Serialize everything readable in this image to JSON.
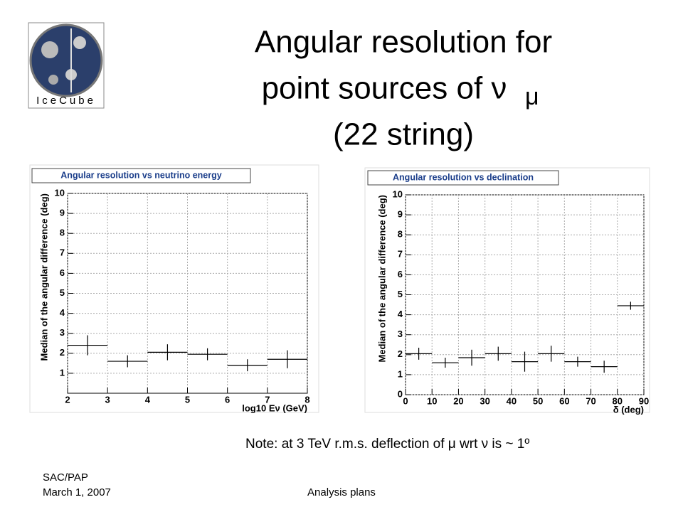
{
  "slide_title": [
    "Angular resolution for",
    "point sources of ν",
    "(22 string)"
  ],
  "slide_title_sub": "μ",
  "logo_text": "IceCube",
  "note": "Note: at 3 TeV  r.m.s. deflection of μ wrt ν is ~ 1º",
  "footer": {
    "left": [
      "SAC/PAP",
      "March 1, 2007"
    ],
    "center": "Analysis plans"
  },
  "chart_data": [
    {
      "type": "histogram",
      "title": "Angular resolution vs neutrino energy",
      "xlabel": "log10 Eν (GeV)",
      "ylabel": "Median of the angular difference (deg)",
      "bins": [
        2,
        3,
        4,
        5,
        6,
        7,
        8
      ],
      "values": [
        2.4,
        1.6,
        2.05,
        1.95,
        1.4,
        1.7
      ],
      "errors": [
        0.5,
        0.3,
        0.4,
        0.3,
        0.3,
        0.45
      ],
      "xlim": [
        2,
        8
      ],
      "xticks": [
        2,
        3,
        4,
        5,
        6,
        7,
        8
      ],
      "ylim": [
        0,
        10
      ],
      "yticks": [
        1,
        2,
        3,
        4,
        5,
        6,
        7,
        8,
        9,
        10
      ],
      "grid": true,
      "color": "#000000"
    },
    {
      "type": "histogram",
      "title": "Angular resolution vs declination",
      "xlabel": "δ (deg)",
      "ylabel": "Median of the angular difference (deg)",
      "bins": [
        0,
        10,
        20,
        30,
        40,
        50,
        60,
        70,
        80,
        90
      ],
      "values": [
        2.05,
        1.6,
        1.85,
        2.05,
        1.65,
        2.05,
        1.65,
        1.4,
        4.45
      ],
      "errors": [
        0.3,
        0.25,
        0.4,
        0.35,
        0.5,
        0.4,
        0.25,
        0.3,
        0.2
      ],
      "xlim": [
        0,
        90
      ],
      "xticks": [
        0,
        10,
        20,
        30,
        40,
        50,
        60,
        70,
        80,
        90
      ],
      "ylim": [
        0,
        10
      ],
      "yticks": [
        0,
        1,
        2,
        3,
        4,
        5,
        6,
        7,
        8,
        9,
        10
      ],
      "grid": true,
      "color": "#000000"
    }
  ]
}
